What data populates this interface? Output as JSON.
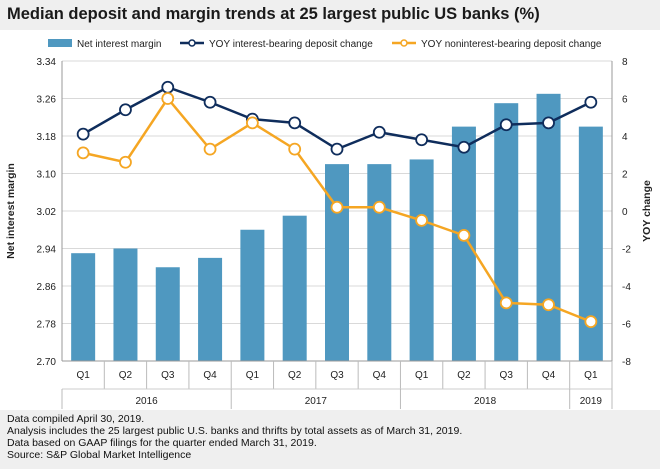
{
  "title": "Median deposit and margin trends at 25 largest public US banks (%)",
  "footer": [
    "Data compiled April 30, 2019.",
    "Analysis includes the 25 largest public U.S. banks and thrifts by total assets as of March 31, 2019.",
    "Data based on GAAP filings for the quarter ended March 31, 2019.",
    "Source: S&P Global Market Intelligence"
  ],
  "chart_data": {
    "type": "bar+line",
    "categories": [
      "Q1",
      "Q2",
      "Q3",
      "Q4",
      "Q1",
      "Q2",
      "Q3",
      "Q4",
      "Q1",
      "Q2",
      "Q3",
      "Q4",
      "Q1"
    ],
    "groups": [
      {
        "label": "2016",
        "count": 4
      },
      {
        "label": "2017",
        "count": 4
      },
      {
        "label": "2018",
        "count": 4
      },
      {
        "label": "2019",
        "count": 1
      }
    ],
    "ylabel": "Net interest margin",
    "y2label": "YOY change",
    "ylim": [
      2.7,
      3.34
    ],
    "yticks": [
      "2.70",
      "2.78",
      "2.86",
      "2.94",
      "3.02",
      "3.10",
      "3.18",
      "3.26",
      "3.34"
    ],
    "y2lim": [
      -8,
      8
    ],
    "y2ticks": [
      "-8",
      "-6",
      "-4",
      "-2",
      "0",
      "2",
      "4",
      "6",
      "8"
    ],
    "grid": true,
    "legend": "top",
    "series": [
      {
        "name": "Net interest margin",
        "type": "bar",
        "axis": "left",
        "color": "#4f98c0",
        "values": [
          2.93,
          2.94,
          2.9,
          2.92,
          2.98,
          3.01,
          3.12,
          3.12,
          3.13,
          3.2,
          3.25,
          3.27,
          3.2
        ]
      },
      {
        "name": "YOY interest-bearing deposit change",
        "type": "line",
        "axis": "right",
        "color": "#0f2d5c",
        "values": [
          4.1,
          5.4,
          6.6,
          5.8,
          4.9,
          4.7,
          3.3,
          4.2,
          3.8,
          3.4,
          4.6,
          4.7,
          5.8
        ]
      },
      {
        "name": "YOY noninterest-bearing deposit change",
        "type": "line",
        "axis": "right",
        "color": "#f5a623",
        "values": [
          3.1,
          2.6,
          6.0,
          3.3,
          4.7,
          3.3,
          0.2,
          0.2,
          -0.5,
          -1.3,
          -4.9,
          -5.0,
          -5.9
        ]
      }
    ]
  }
}
